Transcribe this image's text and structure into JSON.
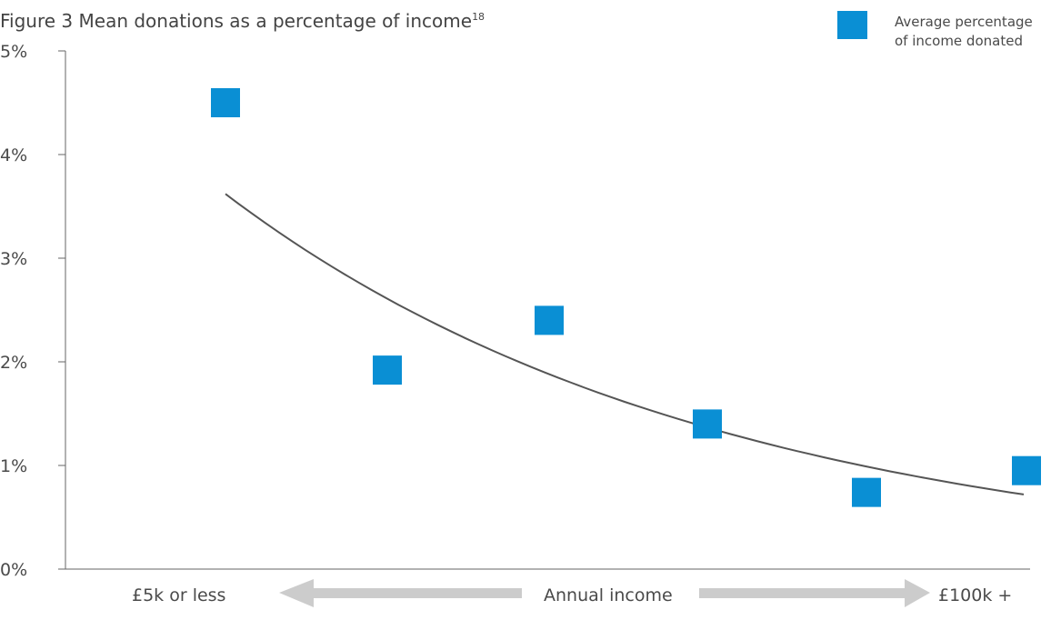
{
  "chart_data": {
    "type": "scatter",
    "title": "Figure 3  Mean donations as a percentage of income",
    "title_footnote": "18",
    "ylim": [
      0,
      5
    ],
    "y_ticks": [
      "0%",
      "1%",
      "2%",
      "3%",
      "4%",
      "5%"
    ],
    "x_axis": {
      "left_label": "£5k or less",
      "center_label": "Annual income",
      "right_label": "£100k +"
    },
    "series": [
      {
        "name": "Average percentage of income donated",
        "color": "#0a8fd4",
        "marker": "square",
        "values": [
          4.5,
          1.92,
          2.4,
          1.4,
          0.74,
          0.95
        ]
      }
    ],
    "trendline": {
      "type": "exponential",
      "color": "#555555",
      "start": 3.62,
      "end": 0.72
    },
    "legend": {
      "position": "top-right",
      "line1": "Average percentage",
      "line2": "of income donated"
    },
    "grid": false,
    "arrow_color": "#cccccc"
  }
}
